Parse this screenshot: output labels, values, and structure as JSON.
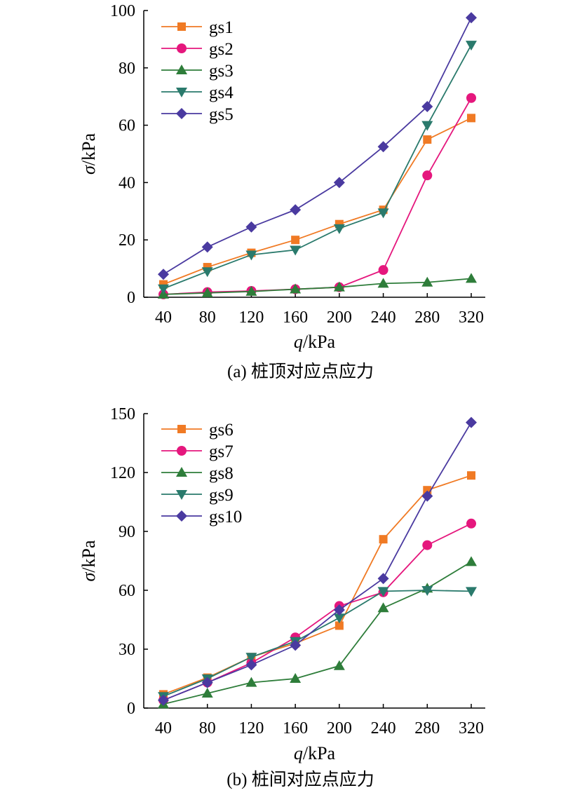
{
  "chart_data": [
    {
      "type": "line",
      "caption": "(a) 桩顶对应点应力",
      "xlabel_italic": "q",
      "xlabel_unit": "/kPa",
      "ylabel_italic": "σ",
      "ylabel_unit": "/kPa",
      "x": [
        40,
        80,
        120,
        160,
        200,
        240,
        280,
        320
      ],
      "xticks": [
        "40",
        "80",
        "120",
        "160",
        "200",
        "240",
        "280",
        "320"
      ],
      "ylim": [
        0,
        100
      ],
      "yticks": [
        0,
        20,
        40,
        60,
        80,
        100
      ],
      "legend_position": "top-left",
      "series": [
        {
          "name": "gs1",
          "color": "#f07a24",
          "marker": "square",
          "values": [
            4.5,
            10.5,
            15.5,
            20,
            25.5,
            30.5,
            55,
            62.5
          ]
        },
        {
          "name": "gs2",
          "color": "#e5177d",
          "marker": "circle",
          "values": [
            1,
            1.8,
            2.2,
            2.8,
            3.5,
            9.5,
            42.5,
            69.5
          ]
        },
        {
          "name": "gs3",
          "color": "#2e7d3a",
          "marker": "triangle-up",
          "values": [
            1,
            1.5,
            2,
            2.8,
            3.5,
            4.8,
            5.2,
            6.5
          ]
        },
        {
          "name": "gs4",
          "color": "#2a7a6c",
          "marker": "triangle-down",
          "values": [
            3,
            9,
            14.8,
            16.5,
            24,
            29.5,
            60,
            88
          ]
        },
        {
          "name": "gs5",
          "color": "#4a3aa0",
          "marker": "diamond",
          "values": [
            8,
            17.5,
            24.5,
            30.5,
            40,
            52.5,
            66.5,
            97.5
          ]
        }
      ]
    },
    {
      "type": "line",
      "caption": "(b) 桩间对应点应力",
      "xlabel_italic": "q",
      "xlabel_unit": "/kPa",
      "ylabel_italic": "σ",
      "ylabel_unit": "/kPa",
      "x": [
        40,
        80,
        120,
        160,
        200,
        240,
        280,
        320
      ],
      "xticks": [
        "40",
        "80",
        "120",
        "160",
        "200",
        "240",
        "280",
        "320"
      ],
      "ylim": [
        0,
        150
      ],
      "yticks": [
        0,
        30,
        60,
        90,
        120,
        150
      ],
      "legend_position": "top-left",
      "series": [
        {
          "name": "gs6",
          "color": "#f07a24",
          "marker": "square",
          "values": [
            7,
            15.5,
            26,
            33,
            42,
            86,
            111,
            118.5
          ]
        },
        {
          "name": "gs7",
          "color": "#e5177d",
          "marker": "circle",
          "values": [
            4,
            13,
            23,
            36,
            52,
            59,
            83,
            94
          ]
        },
        {
          "name": "gs8",
          "color": "#2e7d3a",
          "marker": "triangle-up",
          "values": [
            2,
            7.5,
            13,
            15,
            21.5,
            51,
            61,
            74.5
          ]
        },
        {
          "name": "gs9",
          "color": "#2a7a6c",
          "marker": "triangle-down",
          "values": [
            6,
            15,
            26,
            34,
            46,
            59.5,
            60,
            59.5
          ]
        },
        {
          "name": "gs10",
          "color": "#4a3aa0",
          "marker": "diamond",
          "values": [
            4,
            13,
            22,
            32,
            50,
            66,
            108,
            145.5
          ]
        }
      ]
    }
  ]
}
